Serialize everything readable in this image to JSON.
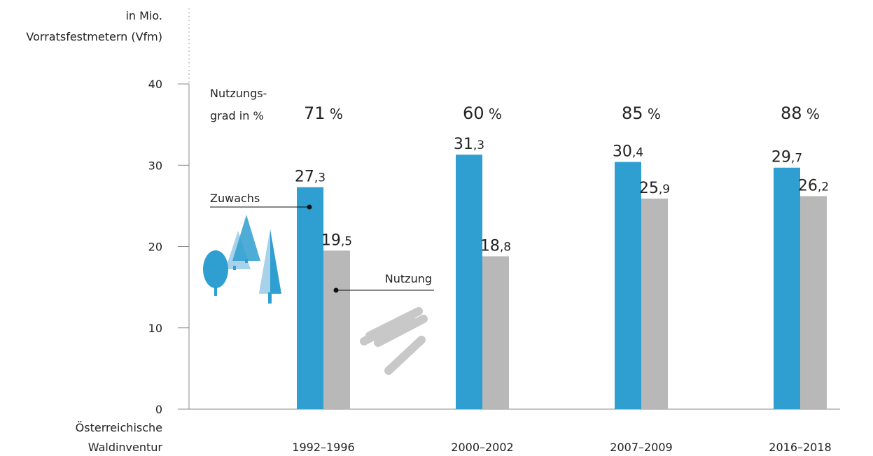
{
  "chart_data": {
    "type": "bar",
    "y_label": [
      "in Mio.",
      "Vorratsfestmetern (Vfm)"
    ],
    "x_label": [
      "Österreichische",
      "Waldinventur"
    ],
    "categories": [
      "1992–1996",
      "2000–2002",
      "2007–2009",
      "2016–2018"
    ],
    "series": [
      {
        "name": "Zuwachs",
        "color": "#2e9fd0",
        "values": [
          27.3,
          31.3,
          30.4,
          29.7
        ],
        "value_labels": [
          "27,3",
          "31,3",
          "30,4",
          "29,7"
        ]
      },
      {
        "name": "Nutzung",
        "color": "#b8b8b8",
        "values": [
          19.5,
          18.8,
          25.9,
          26.2
        ],
        "value_labels": [
          "19,5",
          "18,8",
          "25,9",
          "26,2"
        ]
      }
    ],
    "usage_rate": {
      "label": [
        "Nutzungs-",
        "grad in %"
      ],
      "values": [
        71,
        60,
        85,
        88
      ],
      "value_labels": [
        "71 %",
        "60 %",
        "85 %",
        "88 %"
      ]
    },
    "ylim": [
      0,
      40
    ],
    "yticks": [
      0,
      10,
      20,
      30,
      40
    ],
    "grid": false
  }
}
